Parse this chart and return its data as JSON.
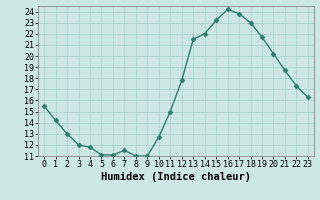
{
  "x": [
    0,
    1,
    2,
    3,
    4,
    5,
    6,
    7,
    8,
    9,
    10,
    11,
    12,
    13,
    14,
    15,
    16,
    17,
    18,
    19,
    20,
    21,
    22,
    23
  ],
  "y": [
    15.5,
    14.2,
    13.0,
    12.0,
    11.8,
    11.1,
    11.1,
    11.5,
    11.0,
    11.0,
    12.7,
    15.0,
    17.8,
    21.5,
    22.0,
    23.2,
    24.2,
    23.8,
    23.0,
    21.7,
    20.2,
    18.7,
    17.3,
    16.3
  ],
  "line_color": "#2e7d6e",
  "marker": "D",
  "marker_size": 2.5,
  "bg_color": "#cde8e4",
  "grid_color": "#aed4cf",
  "xlabel": "Humidex (Indice chaleur)",
  "ylabel": "",
  "xlim": [
    -0.5,
    23.5
  ],
  "ylim": [
    11,
    24.5
  ],
  "yticks": [
    11,
    12,
    13,
    14,
    15,
    16,
    17,
    18,
    19,
    20,
    21,
    22,
    23,
    24
  ],
  "xticks": [
    0,
    1,
    2,
    3,
    4,
    5,
    6,
    7,
    8,
    9,
    10,
    11,
    12,
    13,
    14,
    15,
    16,
    17,
    18,
    19,
    20,
    21,
    22,
    23
  ],
  "tick_fontsize": 6,
  "xlabel_fontsize": 7.5,
  "line_width": 1.0
}
